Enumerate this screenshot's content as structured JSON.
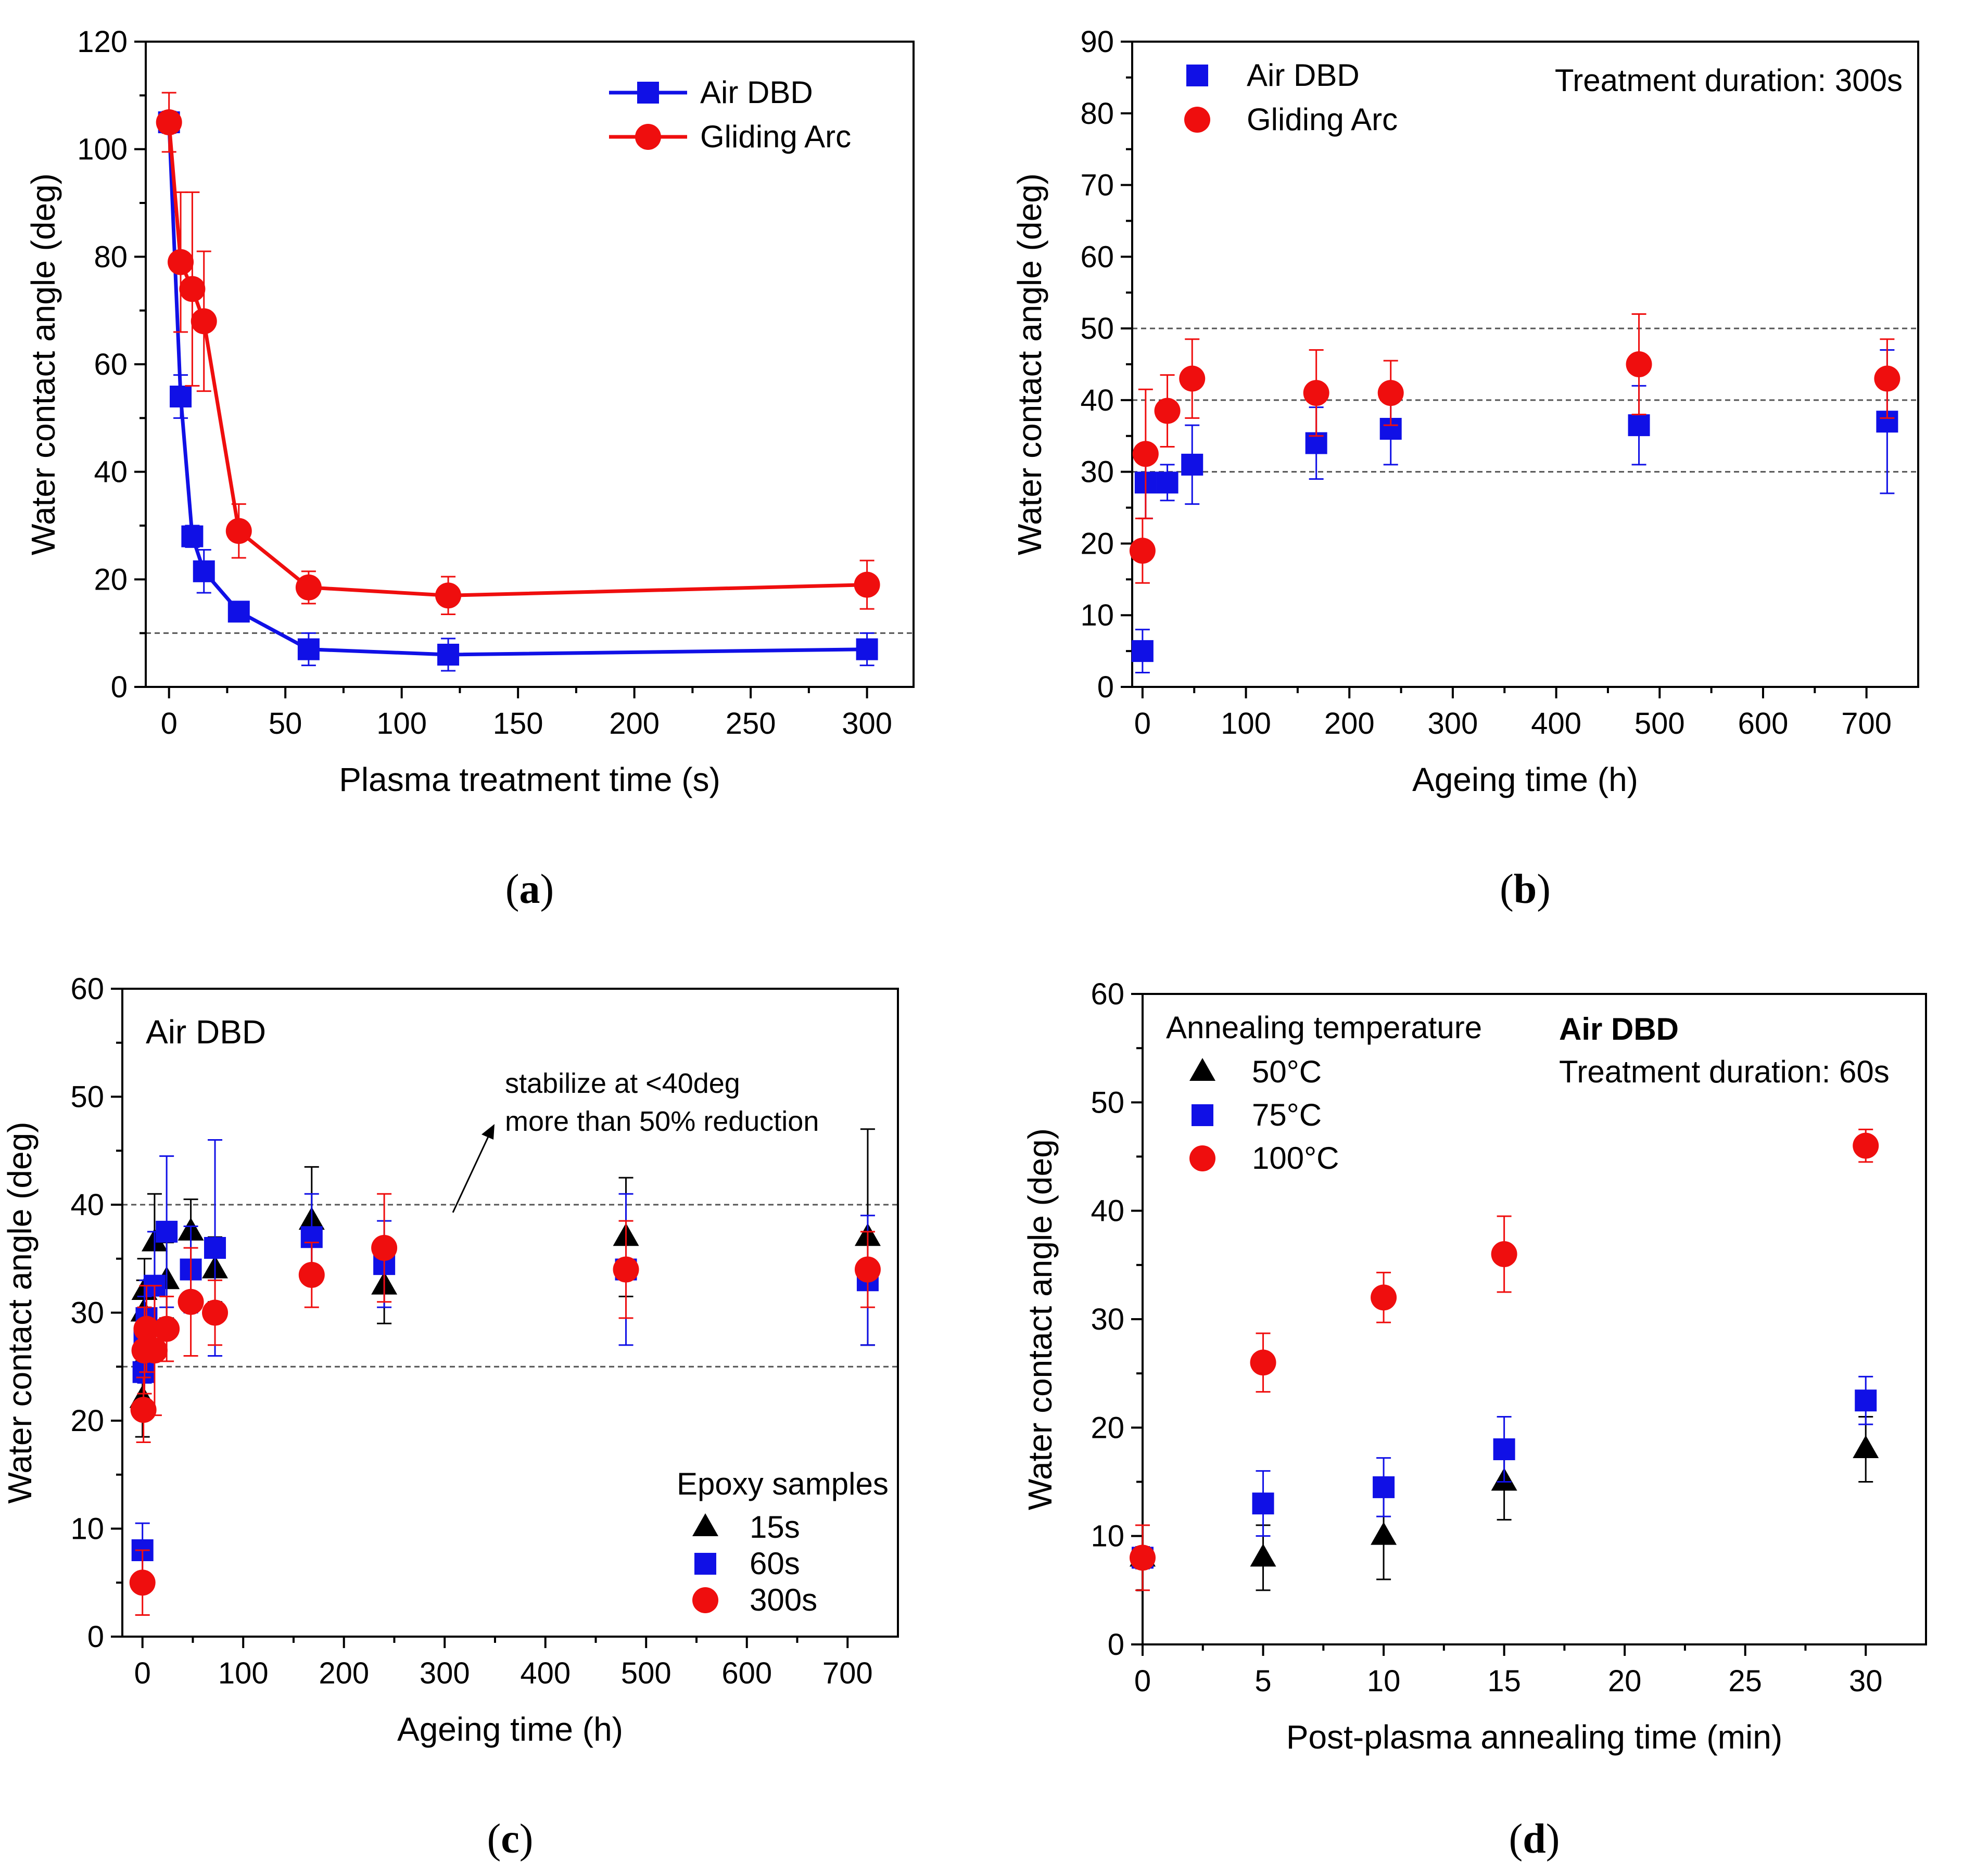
{
  "colors": {
    "blue": "#1010e6",
    "red": "#ef0e0e",
    "black": "#000000",
    "ref_line": "#555555"
  },
  "chart_data": [
    {
      "id": "a",
      "type": "line",
      "caption_open": "(",
      "caption_letter": "a",
      "caption_close": ")",
      "xlabel": "Plasma treatment time (s)",
      "ylabel": "Water contact angle (deg)",
      "xlim": [
        -10,
        320
      ],
      "ylim": [
        0,
        120
      ],
      "xticks": [
        0,
        50,
        100,
        150,
        200,
        250,
        300
      ],
      "yticks": [
        0,
        20,
        40,
        60,
        80,
        100,
        120
      ],
      "ref_lines": [
        10
      ],
      "legend_pos": "top-right",
      "series": [
        {
          "name": "Air DBD",
          "color": "#1010e6",
          "marker": "square",
          "line": true,
          "x": [
            0,
            5,
            10,
            15,
            30,
            60,
            120,
            300
          ],
          "y": [
            105,
            54,
            28,
            21.5,
            14,
            7,
            6,
            7
          ],
          "err": [
            2,
            4,
            2,
            4,
            1.5,
            3,
            3,
            3
          ]
        },
        {
          "name": "Gliding Arc",
          "color": "#ef0e0e",
          "marker": "circle",
          "line": true,
          "x": [
            0,
            5,
            10,
            15,
            30,
            60,
            120,
            300
          ],
          "y": [
            105,
            79,
            74,
            68,
            29,
            18.5,
            17,
            19
          ],
          "err": [
            5.5,
            13,
            18,
            13,
            5,
            3,
            3.5,
            4.5
          ]
        }
      ],
      "annotations": []
    },
    {
      "id": "b",
      "type": "scatter",
      "caption_open": "(",
      "caption_letter": "b",
      "caption_close": ")",
      "xlabel": "Ageing time (h)",
      "ylabel": "Water contact angle (deg)",
      "xlim": [
        -10,
        750
      ],
      "ylim": [
        0,
        90
      ],
      "xticks": [
        0,
        100,
        200,
        300,
        400,
        500,
        600,
        700
      ],
      "yticks": [
        0,
        10,
        20,
        30,
        40,
        50,
        60,
        70,
        80,
        90
      ],
      "ref_lines": [
        30,
        40,
        50
      ],
      "legend_pos": "top-left",
      "series": [
        {
          "name": "Air DBD",
          "color": "#1010e6",
          "marker": "square",
          "line": false,
          "x": [
            0,
            3,
            24,
            48,
            168,
            240,
            480,
            720
          ],
          "y": [
            5,
            28.5,
            28.5,
            31,
            34,
            36,
            36.5,
            37
          ],
          "err": [
            3,
            5,
            2.5,
            5.5,
            5,
            5,
            5.5,
            10
          ]
        },
        {
          "name": "Gliding Arc",
          "color": "#ef0e0e",
          "marker": "circle",
          "line": false,
          "x": [
            0,
            3,
            24,
            48,
            168,
            240,
            480,
            720
          ],
          "y": [
            19,
            32.5,
            38.5,
            43,
            41,
            41,
            45,
            43
          ],
          "err": [
            4.5,
            9,
            5,
            5.5,
            6,
            4.5,
            7,
            5.5
          ]
        }
      ],
      "annotations": [
        {
          "text": "Treatment duration: 300s",
          "bold": false,
          "pos": "top-right"
        }
      ]
    },
    {
      "id": "c",
      "type": "scatter",
      "caption_open": "(",
      "caption_letter": "c",
      "caption_close": ")",
      "xlabel": "Ageing time (h)",
      "ylabel": "Water contact angle (deg)",
      "xlim": [
        -20,
        750
      ],
      "ylim": [
        0,
        60
      ],
      "xticks": [
        0,
        100,
        200,
        300,
        400,
        500,
        600,
        700
      ],
      "yticks": [
        0,
        10,
        20,
        30,
        40,
        50,
        60
      ],
      "ref_lines": [
        25,
        40
      ],
      "legend_pos": "bottom-right",
      "legend_title": "Epoxy samples",
      "series": [
        {
          "name": "15s",
          "color": "#000000",
          "marker": "triangle",
          "line": false,
          "x": [
            0,
            1,
            2,
            4,
            12,
            24,
            48,
            72,
            168,
            240,
            480,
            720
          ],
          "y": [
            22,
            30,
            32,
            28,
            36.5,
            33,
            37.5,
            34,
            38.5,
            32.5,
            37,
            37
          ],
          "err": [
            3.5,
            3,
            3,
            3.5,
            4.5,
            3.5,
            3,
            3,
            5,
            3.5,
            5.5,
            10
          ]
        },
        {
          "name": "60s",
          "color": "#1010e6",
          "marker": "square",
          "line": false,
          "x": [
            0,
            1,
            2,
            4,
            12,
            24,
            48,
            72,
            168,
            240,
            480,
            720
          ],
          "y": [
            8,
            24.5,
            27.5,
            29.5,
            32.5,
            37.5,
            34,
            36,
            37,
            34.5,
            34,
            33
          ],
          "err": [
            2.5,
            3.5,
            4,
            3.5,
            5,
            7,
            4,
            10,
            4,
            4,
            7,
            6
          ]
        },
        {
          "name": "300s",
          "color": "#ef0e0e",
          "marker": "circle",
          "line": false,
          "x": [
            0,
            1,
            2,
            4,
            12,
            24,
            48,
            72,
            168,
            240,
            480,
            720
          ],
          "y": [
            5,
            21,
            26.5,
            28.5,
            26.5,
            28.5,
            31,
            30,
            33.5,
            36,
            34,
            34
          ],
          "err": [
            3,
            3,
            4,
            4,
            6,
            3,
            5,
            3,
            3,
            5,
            4.5,
            3.5
          ]
        }
      ],
      "annotations": [
        {
          "text": "Air DBD",
          "bold": false,
          "pos": "top-left",
          "large": true
        },
        {
          "text": "stabilize at <40deg",
          "bold": false,
          "pos": "note-1"
        },
        {
          "text": "more than 50% reduction",
          "bold": false,
          "pos": "note-2"
        }
      ]
    },
    {
      "id": "d",
      "type": "scatter",
      "caption_open": "(",
      "caption_letter": "d",
      "caption_close": ")",
      "xlabel": "Post-plasma annealing time (min)",
      "ylabel": "Water contact angle  (deg)",
      "xlim": [
        0,
        32.5
      ],
      "ylim": [
        0,
        60
      ],
      "xticks": [
        0,
        5,
        10,
        15,
        20,
        25,
        30
      ],
      "yticks": [
        0,
        10,
        20,
        30,
        40,
        50,
        60
      ],
      "ref_lines": [],
      "legend_pos": "top-left",
      "legend_title": "Annealing temperature",
      "series": [
        {
          "name": "50°C",
          "color": "#000000",
          "marker": "triangle",
          "line": false,
          "x": [
            0,
            5,
            10,
            15,
            30
          ],
          "y": [
            8,
            8,
            10,
            15,
            18
          ],
          "err": [
            1,
            3,
            4,
            3.5,
            3
          ]
        },
        {
          "name": "75°C",
          "color": "#1010e6",
          "marker": "square",
          "line": false,
          "x": [
            0,
            5,
            10,
            15,
            30
          ],
          "y": [
            8,
            13,
            14.5,
            18,
            22.5
          ],
          "err": [
            1,
            3,
            2.7,
            3,
            2.2
          ]
        },
        {
          "name": "100°C",
          "color": "#ef0e0e",
          "marker": "circle",
          "line": false,
          "x": [
            0,
            5,
            10,
            15,
            30
          ],
          "y": [
            8,
            26,
            32,
            36,
            46
          ],
          "err": [
            3,
            2.7,
            2.3,
            3.5,
            1.5
          ]
        }
      ],
      "annotations": [
        {
          "text": "Air DBD",
          "bold": true,
          "pos": "top-right-1"
        },
        {
          "text": "Treatment duration: 60s",
          "bold": false,
          "pos": "top-right-2"
        }
      ]
    }
  ]
}
